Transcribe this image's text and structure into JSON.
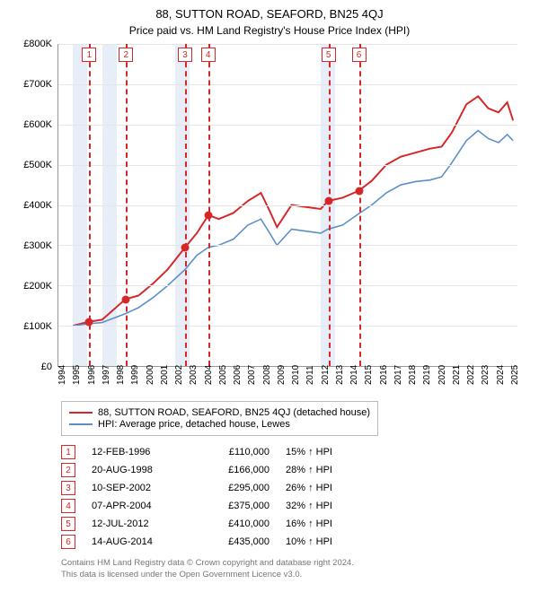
{
  "title": "88, SUTTON ROAD, SEAFORD, BN25 4QJ",
  "subtitle": "Price paid vs. HM Land Registry's House Price Index (HPI)",
  "chart": {
    "type": "line",
    "x_axis": {
      "min": 1994,
      "max": 2025.5,
      "ticks": [
        1994,
        1995,
        1996,
        1997,
        1998,
        1999,
        2000,
        2001,
        2002,
        2003,
        2004,
        2005,
        2006,
        2007,
        2008,
        2009,
        2010,
        2011,
        2012,
        2013,
        2014,
        2015,
        2016,
        2017,
        2018,
        2019,
        2020,
        2021,
        2022,
        2023,
        2024,
        2025
      ],
      "fontsize": 10
    },
    "y_axis": {
      "min": 0,
      "max": 800000,
      "tick_step": 100000,
      "labels": [
        "£0",
        "£100K",
        "£200K",
        "£300K",
        "£400K",
        "£500K",
        "£600K",
        "£700K",
        "£800K"
      ],
      "fontsize": 11
    },
    "grid_color": "#e6e6e6",
    "shade_color": "#e8eef7",
    "shaded_year_ranges": [
      [
        1995,
        1996
      ],
      [
        1997,
        1998
      ],
      [
        2002,
        2003
      ],
      [
        2012,
        2013
      ]
    ],
    "series": [
      {
        "name": "subject",
        "label": "88, SUTTON ROAD, SEAFORD, BN25 4QJ (detached house)",
        "color": "#d62728",
        "width": 2,
        "points": [
          [
            1995.0,
            100000
          ],
          [
            1996.1,
            110000
          ],
          [
            1997.0,
            115000
          ],
          [
            1998.6,
            166000
          ],
          [
            1999.5,
            175000
          ],
          [
            2000.5,
            205000
          ],
          [
            2001.5,
            240000
          ],
          [
            2002.7,
            295000
          ],
          [
            2003.5,
            330000
          ],
          [
            2004.3,
            375000
          ],
          [
            2005.0,
            365000
          ],
          [
            2006.0,
            380000
          ],
          [
            2007.0,
            410000
          ],
          [
            2007.9,
            430000
          ],
          [
            2008.5,
            385000
          ],
          [
            2009.0,
            345000
          ],
          [
            2010.0,
            400000
          ],
          [
            2011.0,
            395000
          ],
          [
            2012.0,
            390000
          ],
          [
            2012.5,
            410000
          ],
          [
            2013.5,
            418000
          ],
          [
            2014.6,
            435000
          ],
          [
            2015.5,
            460000
          ],
          [
            2016.5,
            500000
          ],
          [
            2017.5,
            520000
          ],
          [
            2018.5,
            530000
          ],
          [
            2019.5,
            540000
          ],
          [
            2020.3,
            545000
          ],
          [
            2021.0,
            580000
          ],
          [
            2022.0,
            650000
          ],
          [
            2022.8,
            670000
          ],
          [
            2023.5,
            640000
          ],
          [
            2024.2,
            630000
          ],
          [
            2024.8,
            655000
          ],
          [
            2025.2,
            610000
          ]
        ]
      },
      {
        "name": "hpi",
        "label": "HPI: Average price, detached house, Lewes",
        "color": "#5b8fc9",
        "width": 1.6,
        "points": [
          [
            1995.0,
            100000
          ],
          [
            1996.1,
            105000
          ],
          [
            1997.0,
            108000
          ],
          [
            1998.6,
            130000
          ],
          [
            1999.5,
            145000
          ],
          [
            2000.5,
            170000
          ],
          [
            2001.5,
            200000
          ],
          [
            2002.7,
            240000
          ],
          [
            2003.5,
            275000
          ],
          [
            2004.3,
            295000
          ],
          [
            2005.0,
            300000
          ],
          [
            2006.0,
            315000
          ],
          [
            2007.0,
            350000
          ],
          [
            2007.9,
            365000
          ],
          [
            2008.5,
            330000
          ],
          [
            2009.0,
            300000
          ],
          [
            2010.0,
            340000
          ],
          [
            2011.0,
            335000
          ],
          [
            2012.0,
            330000
          ],
          [
            2012.5,
            340000
          ],
          [
            2013.5,
            350000
          ],
          [
            2014.6,
            378000
          ],
          [
            2015.5,
            400000
          ],
          [
            2016.5,
            430000
          ],
          [
            2017.5,
            450000
          ],
          [
            2018.5,
            458000
          ],
          [
            2019.5,
            462000
          ],
          [
            2020.3,
            470000
          ],
          [
            2021.0,
            505000
          ],
          [
            2022.0,
            560000
          ],
          [
            2022.8,
            585000
          ],
          [
            2023.5,
            565000
          ],
          [
            2024.2,
            555000
          ],
          [
            2024.8,
            575000
          ],
          [
            2025.2,
            560000
          ]
        ]
      }
    ],
    "events": [
      {
        "n": "1",
        "date": "12-FEB-1996",
        "x": 1996.12,
        "price": 110000,
        "price_label": "£110,000",
        "diff": "15% ↑ HPI",
        "line_color": "#d62728"
      },
      {
        "n": "2",
        "date": "20-AUG-1998",
        "x": 1998.64,
        "price": 166000,
        "price_label": "£166,000",
        "diff": "28% ↑ HPI",
        "line_color": "#d62728"
      },
      {
        "n": "3",
        "date": "10-SEP-2002",
        "x": 2002.69,
        "price": 295000,
        "price_label": "£295,000",
        "diff": "26% ↑ HPI",
        "line_color": "#d62728"
      },
      {
        "n": "4",
        "date": "07-APR-2004",
        "x": 2004.27,
        "price": 375000,
        "price_label": "£375,000",
        "diff": "32% ↑ HPI",
        "line_color": "#d62728"
      },
      {
        "n": "5",
        "date": "12-JUL-2012",
        "x": 2012.53,
        "price": 410000,
        "price_label": "£410,000",
        "diff": "16% ↑ HPI",
        "line_color": "#d62728"
      },
      {
        "n": "6",
        "date": "14-AUG-2014",
        "x": 2014.62,
        "price": 435000,
        "price_label": "£435,000",
        "diff": "10% ↑ HPI",
        "line_color": "#d62728"
      }
    ],
    "marker_color": "#d62728",
    "marker_size": 9
  },
  "footer": {
    "line1": "Contains HM Land Registry data © Crown copyright and database right 2024.",
    "line2": "This data is licensed under the Open Government Licence v3.0."
  }
}
